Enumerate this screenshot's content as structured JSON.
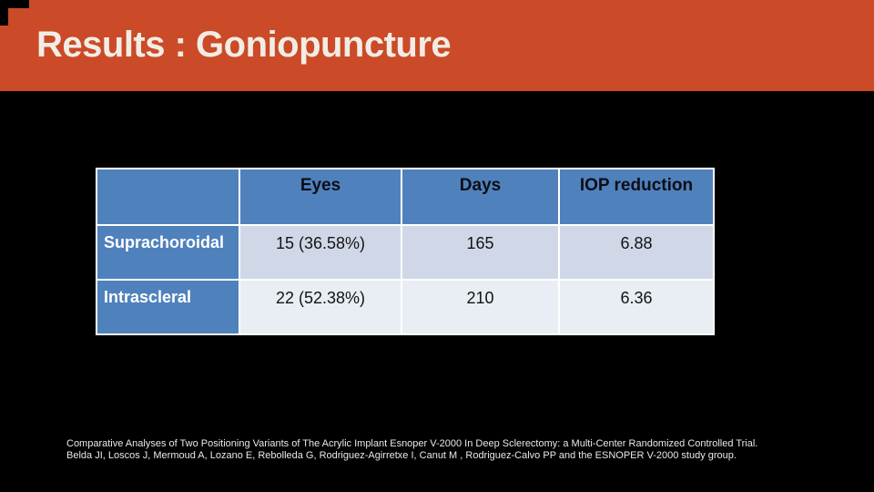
{
  "slide": {
    "title": "Results : Goniopuncture"
  },
  "table": {
    "headers": {
      "col1": "",
      "col2": "Eyes",
      "col3": "Days",
      "col4": "IOP reduction"
    },
    "rows": [
      {
        "label": "Suprachoroidal",
        "eyes": "15 (36.58%)",
        "days": "165",
        "iop": "6.88"
      },
      {
        "label": "Intrascleral",
        "eyes": "22 (52.38%)",
        "days": "210",
        "iop": "6.36"
      }
    ]
  },
  "citation": {
    "line1": "Comparative Analyses of Two Positioning Variants of The Acrylic Implant Esnoper V-2000 In Deep Sclerectomy: a Multi-Center Randomized Controlled Trial.",
    "line2": "Belda JI, Loscos J, Mermoud A, Lozano E, Rebolleda G, Rodriguez-Agirretxe I, Canut M , Rodriguez-Calvo PP and the ESNOPER V-2000 study group."
  },
  "colors": {
    "title_band": "#CB4A28",
    "table_accent_blue": "#4F81BD",
    "row_band_dark": "#D0D8E8",
    "row_band_light": "#E9EDF4",
    "title_text": "#F2EDE4",
    "citation_text": "#E9E9E9",
    "background": "#000000"
  }
}
